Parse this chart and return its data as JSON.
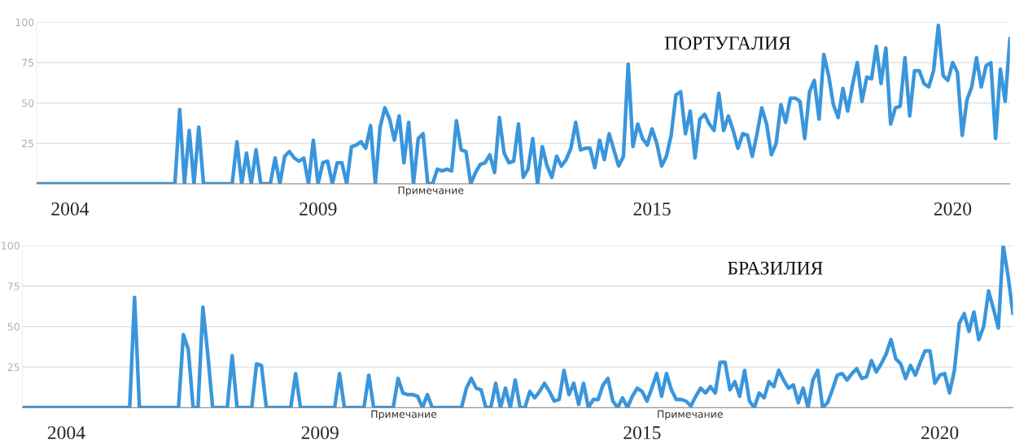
{
  "chart_data": [
    {
      "type": "line",
      "title": "ПОРТУГАЛИЯ",
      "annotations": [
        "Примечание"
      ],
      "grid": "y",
      "ylim": [
        0,
        100
      ],
      "yticks": [
        25,
        50,
        75,
        100
      ],
      "line_style": "solid",
      "categories": [
        null,
        null,
        null,
        null,
        null,
        null,
        null,
        "2004",
        null,
        null,
        null,
        null,
        null,
        null,
        null,
        null,
        null,
        null,
        null,
        null,
        null,
        null,
        null,
        null,
        null,
        null,
        null,
        null,
        null,
        null,
        null,
        null,
        null,
        null,
        null,
        null,
        null,
        null,
        null,
        null,
        null,
        null,
        null,
        null,
        null,
        null,
        null,
        null,
        null,
        null,
        null,
        null,
        null,
        null,
        null,
        null,
        null,
        null,
        null,
        "2009",
        null,
        null,
        null,
        null,
        null,
        null,
        null,
        null,
        null,
        null,
        null,
        null,
        null,
        null,
        null,
        null,
        null,
        null,
        null,
        null,
        null,
        null,
        null,
        null,
        null,
        null,
        null,
        null,
        null,
        null,
        null,
        null,
        null,
        null,
        null,
        null,
        null,
        null,
        null,
        null,
        null,
        null,
        null,
        null,
        null,
        null,
        null,
        null,
        null,
        null,
        null,
        null,
        null,
        null,
        null,
        null,
        null,
        null,
        null,
        null,
        null,
        null,
        null,
        null,
        null,
        null,
        null,
        null,
        null,
        "2015",
        null,
        null,
        null,
        null,
        null,
        null,
        null,
        null,
        null,
        null,
        null,
        null,
        null,
        null,
        null,
        null,
        null,
        null,
        null,
        null,
        null,
        null,
        null,
        null,
        null,
        null,
        null,
        null,
        null,
        null,
        null,
        null,
        null,
        null,
        null,
        null,
        null,
        null,
        null,
        null,
        null,
        null,
        null,
        null,
        null,
        null,
        null,
        null,
        null,
        null,
        null,
        null,
        null,
        null,
        null,
        null,
        null,
        null,
        null,
        null,
        null,
        null,
        "2020",
        null,
        null,
        null,
        null,
        null,
        null,
        null,
        null,
        null,
        null,
        null,
        null
      ],
      "series": [
        {
          "color": "#3a96dc",
          "values": [
            0,
            0,
            0,
            0,
            0,
            0,
            0,
            0,
            0,
            0,
            0,
            0,
            0,
            0,
            0,
            0,
            0,
            0,
            0,
            0,
            0,
            0,
            0,
            0,
            0,
            0,
            0,
            0,
            0,
            0,
            46,
            0,
            33,
            0,
            35,
            0,
            0,
            0,
            0,
            0,
            0,
            0,
            26,
            0,
            19,
            0,
            21,
            0,
            0,
            0,
            16,
            0,
            17,
            20,
            16,
            14,
            16,
            0,
            27,
            0,
            13,
            14,
            0,
            13,
            13,
            0,
            23,
            24,
            26,
            22,
            36,
            0,
            35,
            47,
            40,
            27,
            42,
            13,
            38,
            0,
            28,
            31,
            0,
            0,
            9,
            8,
            9,
            8,
            39,
            21,
            20,
            0,
            7,
            12,
            13,
            18,
            7,
            41,
            19,
            13,
            14,
            37,
            4,
            9,
            28,
            0,
            23,
            11,
            4,
            17,
            11,
            15,
            22,
            38,
            21,
            22,
            22,
            10,
            27,
            15,
            31,
            21,
            11,
            17,
            74,
            23,
            37,
            28,
            24,
            34,
            25,
            11,
            17,
            30,
            55,
            57,
            31,
            45,
            16,
            40,
            43,
            37,
            33,
            56,
            33,
            42,
            33,
            22,
            31,
            30,
            17,
            31,
            47,
            37,
            18,
            25,
            49,
            38,
            53,
            53,
            51,
            28,
            57,
            64,
            40,
            80,
            67,
            49,
            41,
            59,
            45,
            61,
            75,
            51,
            66,
            65,
            85,
            62,
            84,
            37,
            47,
            48,
            78,
            42,
            70,
            70,
            62,
            60,
            70,
            98,
            67,
            64,
            75,
            69,
            30,
            52,
            60,
            78,
            60,
            73,
            75,
            28,
            71,
            51,
            90
          ]
        }
      ]
    },
    {
      "type": "line",
      "title": "БРАЗИЛИЯ",
      "annotations": [
        "Примечание",
        "Примечание"
      ],
      "grid": "y",
      "ylim": [
        0,
        100
      ],
      "yticks": [
        25,
        50,
        75,
        100
      ],
      "line_style": "solid",
      "categories": [
        null,
        null,
        null,
        null,
        null,
        null,
        null,
        null,
        null,
        "2004",
        null,
        null,
        null,
        null,
        null,
        null,
        null,
        null,
        null,
        null,
        null,
        null,
        null,
        null,
        null,
        null,
        null,
        null,
        null,
        null,
        null,
        null,
        null,
        null,
        null,
        null,
        null,
        null,
        null,
        null,
        null,
        null,
        null,
        null,
        null,
        null,
        null,
        null,
        null,
        null,
        null,
        null,
        null,
        null,
        null,
        null,
        null,
        null,
        null,
        null,
        null,
        "2009",
        null,
        null,
        null,
        null,
        null,
        null,
        null,
        null,
        null,
        null,
        null,
        null,
        null,
        null,
        null,
        null,
        null,
        null,
        null,
        null,
        null,
        null,
        null,
        null,
        null,
        null,
        null,
        null,
        null,
        null,
        null,
        null,
        null,
        null,
        null,
        null,
        null,
        null,
        null,
        null,
        null,
        null,
        null,
        null,
        null,
        null,
        null,
        null,
        null,
        null,
        null,
        null,
        null,
        null,
        null,
        null,
        null,
        null,
        null,
        null,
        null,
        null,
        null,
        null,
        null,
        "2015",
        null,
        null,
        null,
        null,
        null,
        null,
        null,
        null,
        null,
        null,
        null,
        null,
        null,
        null,
        null,
        null,
        null,
        null,
        null,
        null,
        null,
        null,
        null,
        null,
        null,
        null,
        null,
        null,
        null,
        null,
        null,
        null,
        null,
        null,
        null,
        null,
        null,
        null,
        null,
        null,
        null,
        null,
        null,
        null,
        null,
        null,
        null,
        null,
        null,
        null,
        null,
        null,
        null,
        null,
        null,
        null,
        null,
        null,
        null,
        null,
        "2020",
        null,
        null,
        null,
        null,
        null,
        null,
        null,
        null,
        null,
        null,
        null,
        null,
        null,
        null,
        null
      ],
      "series": [
        {
          "color": "#3a96dc",
          "values": [
            0,
            0,
            0,
            0,
            0,
            0,
            0,
            0,
            0,
            0,
            0,
            0,
            0,
            0,
            0,
            0,
            0,
            0,
            0,
            0,
            0,
            0,
            0,
            68,
            0,
            0,
            0,
            0,
            0,
            0,
            0,
            0,
            0,
            45,
            36,
            0,
            0,
            62,
            33,
            0,
            0,
            0,
            0,
            32,
            0,
            0,
            0,
            0,
            27,
            26,
            0,
            0,
            0,
            0,
            0,
            0,
            21,
            0,
            0,
            0,
            0,
            0,
            0,
            0,
            0,
            21,
            0,
            0,
            0,
            0,
            0,
            20,
            0,
            0,
            0,
            0,
            0,
            18,
            9,
            8,
            8,
            7,
            0,
            8,
            0,
            0,
            0,
            0,
            0,
            0,
            0,
            12,
            18,
            12,
            11,
            0,
            0,
            15,
            0,
            12,
            0,
            17,
            0,
            0,
            10,
            6,
            10,
            15,
            10,
            4,
            5,
            23,
            8,
            15,
            2,
            15,
            0,
            5,
            5,
            14,
            18,
            4,
            0,
            6,
            0,
            7,
            12,
            10,
            4,
            12,
            21,
            7,
            21,
            11,
            5,
            5,
            4,
            1,
            7,
            12,
            9,
            13,
            9,
            28,
            28,
            11,
            16,
            7,
            23,
            4,
            0,
            9,
            6,
            16,
            13,
            23,
            17,
            12,
            14,
            3,
            12,
            0,
            17,
            23,
            0,
            3,
            11,
            20,
            21,
            17,
            21,
            24,
            18,
            19,
            29,
            22,
            27,
            33,
            42,
            30,
            27,
            18,
            26,
            20,
            28,
            35,
            35,
            15,
            20,
            21,
            9,
            23,
            52,
            58,
            47,
            59,
            42,
            50,
            72,
            61,
            49,
            100,
            81,
            58
          ]
        }
      ]
    }
  ]
}
